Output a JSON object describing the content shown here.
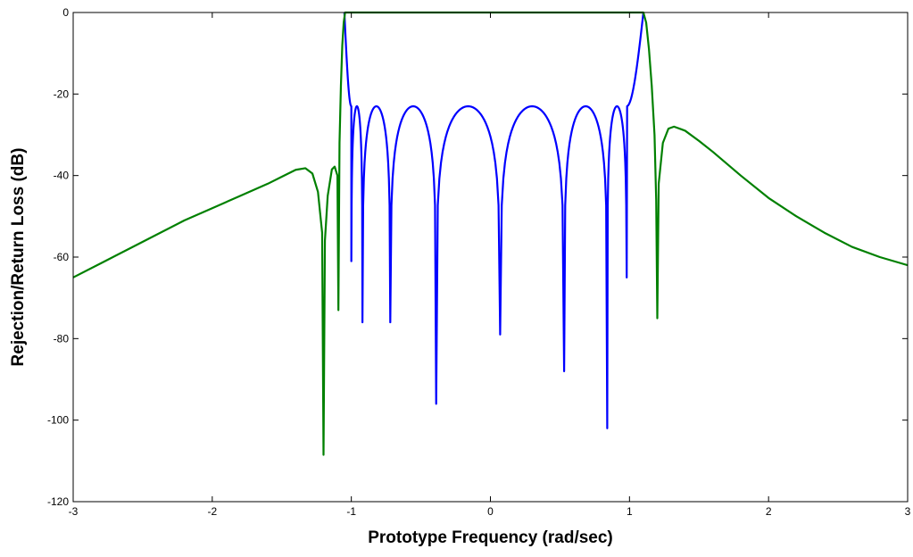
{
  "chart_data": {
    "type": "line",
    "title": "",
    "xlabel": "Prototype Frequency (rad/sec)",
    "ylabel": "Rejection/Return Loss (dB)",
    "xlim": [
      -3,
      3
    ],
    "ylim": [
      -120,
      0
    ],
    "xticks": [
      -3,
      -2,
      -1,
      0,
      1,
      2,
      3
    ],
    "yticks": [
      0,
      -20,
      -40,
      -60,
      -80,
      -100,
      -120
    ],
    "grid": false,
    "legend": "none",
    "series": [
      {
        "color": "#0000ff",
        "style": "return-loss",
        "passband": [
          -1.05,
          1.1
        ],
        "ripple_db": -23,
        "nulls": [
          {
            "x": -1.0,
            "y": -61
          },
          {
            "x": -0.92,
            "y": -76
          },
          {
            "x": -0.72,
            "y": -76
          },
          {
            "x": -0.39,
            "y": -96
          },
          {
            "x": 0.07,
            "y": -79
          },
          {
            "x": 0.53,
            "y": -88
          },
          {
            "x": 0.84,
            "y": -102
          },
          {
            "x": 0.98,
            "y": -65
          }
        ]
      },
      {
        "color": "#008000",
        "style": "rejection",
        "passband": [
          -1.05,
          1.1
        ],
        "points": [
          [
            -3.0,
            -65
          ],
          [
            -2.8,
            -61.5
          ],
          [
            -2.6,
            -58
          ],
          [
            -2.4,
            -54.5
          ],
          [
            -2.2,
            -51
          ],
          [
            -2.0,
            -48
          ],
          [
            -1.8,
            -45
          ],
          [
            -1.6,
            -42
          ],
          [
            -1.5,
            -40.3
          ],
          [
            -1.4,
            -38.6
          ],
          [
            -1.33,
            -38.2
          ],
          [
            -1.28,
            -39.5
          ],
          [
            -1.24,
            -44
          ],
          [
            -1.21,
            -54
          ],
          [
            -1.2,
            -108.5
          ],
          [
            -1.19,
            -56
          ],
          [
            -1.17,
            -45
          ],
          [
            -1.14,
            -38.5
          ],
          [
            -1.12,
            -37.8
          ],
          [
            -1.1,
            -40
          ],
          [
            -1.093,
            -73
          ],
          [
            -1.085,
            -32
          ],
          [
            -1.075,
            -18
          ],
          [
            -1.065,
            -8
          ],
          [
            -1.055,
            -2.5
          ],
          [
            -1.045,
            0
          ],
          [
            1.1,
            0
          ],
          [
            1.12,
            -2.5
          ],
          [
            1.14,
            -9
          ],
          [
            1.16,
            -18
          ],
          [
            1.18,
            -30
          ],
          [
            1.192,
            -46
          ],
          [
            1.2,
            -75
          ],
          [
            1.21,
            -42
          ],
          [
            1.24,
            -32
          ],
          [
            1.28,
            -28.5
          ],
          [
            1.32,
            -28
          ],
          [
            1.4,
            -29
          ],
          [
            1.5,
            -31.5
          ],
          [
            1.6,
            -34.2
          ],
          [
            1.8,
            -40
          ],
          [
            2.0,
            -45.5
          ],
          [
            2.2,
            -50
          ],
          [
            2.4,
            -54
          ],
          [
            2.6,
            -57.5
          ],
          [
            2.8,
            -60
          ],
          [
            3.0,
            -62
          ]
        ]
      }
    ]
  }
}
